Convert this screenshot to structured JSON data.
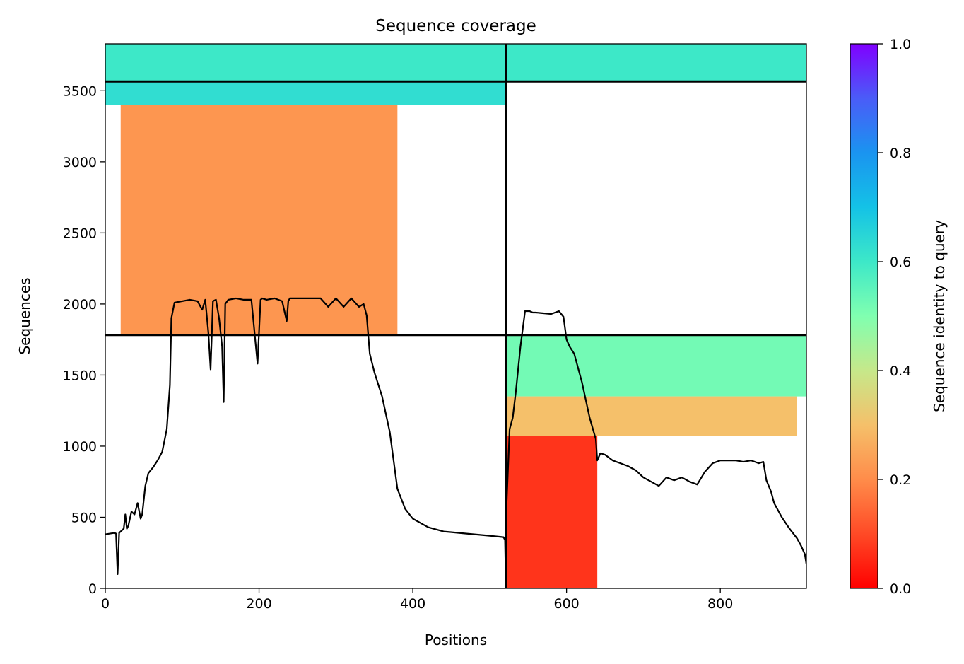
{
  "chart_data": {
    "type": "heatmap",
    "title": "Sequence coverage",
    "xlabel": "Positions",
    "ylabel": "Sequences",
    "xlim": [
      0,
      912
    ],
    "ylim": [
      0,
      3830
    ],
    "xticks": [
      0,
      200,
      400,
      600,
      800
    ],
    "yticks": [
      0,
      500,
      1000,
      1500,
      2000,
      2500,
      3000,
      3500
    ],
    "colorbar": {
      "label": "Sequence identity to query",
      "range": [
        0,
        1
      ],
      "ticks": [
        "0.0",
        "0.2",
        "0.4",
        "0.6",
        "0.8",
        "1.0"
      ],
      "colormap": "rainbow_r"
    },
    "chain_boundaries": {
      "x": [
        521
      ],
      "y": [
        1782,
        3565
      ]
    },
    "coverage_blocks": [
      {
        "x": [
          0,
          521
        ],
        "y": [
          3565,
          3830
        ],
        "identity": 0.6
      },
      {
        "x": [
          521,
          912
        ],
        "y": [
          3565,
          3830
        ],
        "identity": 0.6
      },
      {
        "x": [
          0,
          521
        ],
        "y": [
          3400,
          3565
        ],
        "identity": 0.63
      },
      {
        "x": [
          20,
          380
        ],
        "y": [
          1782,
          3400
        ],
        "identity": 0.22
      },
      {
        "x": [
          521,
          912
        ],
        "y": [
          1350,
          1782
        ],
        "identity": 0.52
      },
      {
        "x": [
          521,
          900
        ],
        "y": [
          1070,
          1350
        ],
        "identity": 0.3
      },
      {
        "x": [
          521,
          640
        ],
        "y": [
          0,
          1070
        ],
        "identity": 0.07
      }
    ],
    "coverage_line": {
      "x": [
        0,
        12,
        14,
        16,
        18,
        20,
        24,
        26,
        28,
        30,
        34,
        38,
        42,
        46,
        48,
        52,
        56,
        62,
        68,
        74,
        80,
        84,
        86,
        90,
        100,
        110,
        120,
        126,
        130,
        134,
        137,
        140,
        144,
        148,
        152,
        154,
        156,
        160,
        170,
        180,
        190,
        198,
        202,
        204,
        210,
        220,
        230,
        236,
        238,
        240,
        250,
        260,
        270,
        280,
        290,
        300,
        310,
        320,
        330,
        336,
        340,
        344,
        350,
        360,
        370,
        380,
        390,
        400,
        420,
        440,
        460,
        480,
        500,
        518,
        520,
        521,
        522,
        526,
        530,
        534,
        540,
        546,
        552,
        556,
        560,
        580,
        590,
        596,
        600,
        604,
        610,
        620,
        630,
        638,
        640,
        644,
        650,
        660,
        670,
        680,
        690,
        700,
        710,
        720,
        730,
        740,
        750,
        760,
        770,
        780,
        790,
        800,
        810,
        820,
        830,
        840,
        850,
        856,
        860,
        866,
        870,
        880,
        890,
        900,
        905,
        910,
        912
      ],
      "y": [
        380,
        390,
        385,
        100,
        390,
        400,
        420,
        520,
        420,
        440,
        540,
        520,
        600,
        490,
        520,
        720,
        810,
        850,
        900,
        960,
        1120,
        1430,
        1900,
        2010,
        2020,
        2030,
        2020,
        1960,
        2030,
        1800,
        1540,
        2020,
        2030,
        1900,
        1700,
        1310,
        2000,
        2030,
        2040,
        2030,
        2030,
        1580,
        2030,
        2040,
        2030,
        2040,
        2020,
        1880,
        2020,
        2040,
        2040,
        2040,
        2040,
        2040,
        1980,
        2040,
        1980,
        2040,
        1980,
        2000,
        1920,
        1650,
        1520,
        1350,
        1100,
        700,
        560,
        490,
        430,
        400,
        390,
        380,
        370,
        360,
        340,
        50,
        600,
        1120,
        1200,
        1380,
        1700,
        1950,
        1950,
        1940,
        1940,
        1930,
        1950,
        1910,
        1750,
        1700,
        1650,
        1450,
        1200,
        1050,
        900,
        950,
        940,
        900,
        880,
        860,
        830,
        780,
        750,
        720,
        780,
        760,
        780,
        750,
        730,
        820,
        880,
        900,
        900,
        900,
        890,
        900,
        880,
        890,
        760,
        680,
        600,
        500,
        420,
        350,
        300,
        240,
        170
      ]
    }
  }
}
